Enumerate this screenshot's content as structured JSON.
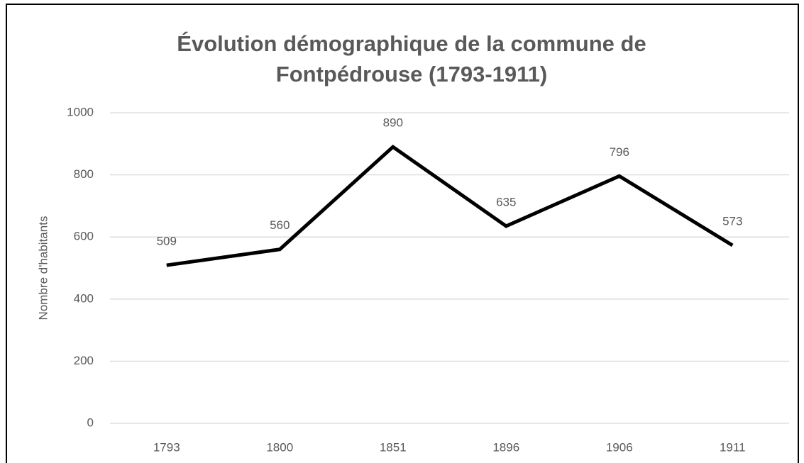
{
  "chart_data": {
    "type": "line",
    "title": "Évolution démographique de la commune de Fontpédrouse (1793-1911)",
    "y_label": "Nombre d'habitants",
    "categories": [
      "1793",
      "1800",
      "1851",
      "1896",
      "1906",
      "1911"
    ],
    "series": [
      {
        "name": "Nombre d'habitants",
        "color": "#000000",
        "values": [
          509,
          560,
          890,
          635,
          796,
          573
        ]
      }
    ],
    "ylim": [
      0,
      1000
    ],
    "yticks": [
      0,
      200,
      400,
      600,
      800,
      1000
    ],
    "grid": true,
    "data_labels": true
  }
}
